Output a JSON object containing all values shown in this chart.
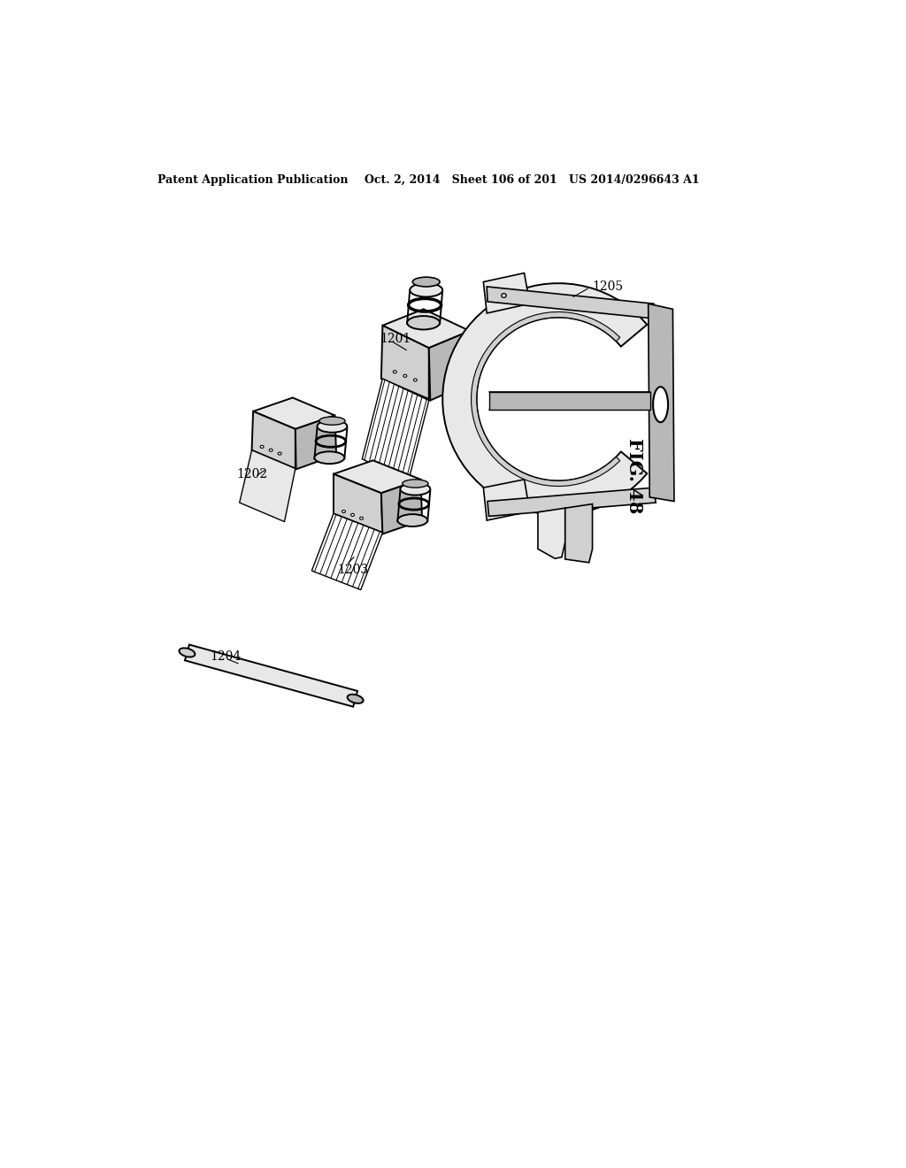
{
  "background_color": "#ffffff",
  "header_left": "Patent Application Publication",
  "header_middle": "Oct. 2, 2014   Sheet 106 of 201   US 2014/0296643 A1",
  "fig_label": "FIG. 48",
  "line_color": "#000000",
  "fill_light": "#e8e8e8",
  "fill_mid": "#d0d0d0",
  "fill_dark": "#b8b8b8"
}
